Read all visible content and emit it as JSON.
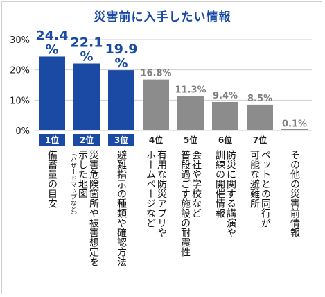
{
  "chart_data": {
    "type": "bar",
    "title": "災害前に入手したい情報",
    "ylim": [
      0,
      30
    ],
    "yticks": [
      "0%",
      "10%",
      "20%",
      "30%"
    ],
    "grid": true,
    "categories": [
      "備蓄量の目安",
      "災害危険箇所や被害想定を示した地図",
      "避難指示の種類や確認方法",
      "有用な防災アプリやホームページなど",
      "会社や学校など普段過ごす施設の耐震性",
      "防災に関する講演や訓練の開催情報",
      "ペットとの同行が可能な避難所",
      "その他の災害前情報"
    ],
    "category_lines": [
      [
        "備蓄量の目安"
      ],
      [
        "災害危険箇所や被害想定を",
        "示した地図"
      ],
      [
        "避難指示の種類や確認方法"
      ],
      [
        "有用な防災アプリや",
        "ホームページなど"
      ],
      [
        "会社や学校など",
        "普段過ごす施設の耐震性"
      ],
      [
        "防災に関する講演や",
        "訓練の開催情報"
      ],
      [
        "ペットとの同行が",
        "可能な避難所"
      ],
      [
        "その他の災害前情報"
      ]
    ],
    "category_note": "（ハザードマップなど）",
    "values": [
      24.4,
      22.1,
      19.9,
      16.8,
      11.3,
      9.4,
      8.5,
      0.1
    ],
    "value_labels": [
      "24.4 %",
      "22.1 %",
      "19.9 %",
      "16.8%",
      "11.3%",
      "9.4%",
      "8.5%",
      "0.1%"
    ],
    "ranks": [
      "1位",
      "2位",
      "3位",
      "4位",
      "5位",
      "6位",
      "7位",
      ""
    ],
    "colors": {
      "top": "#1a4aa3",
      "other": "#8c8c8c",
      "title": "#1a4aa3",
      "grid": "#cfcfcf"
    }
  }
}
